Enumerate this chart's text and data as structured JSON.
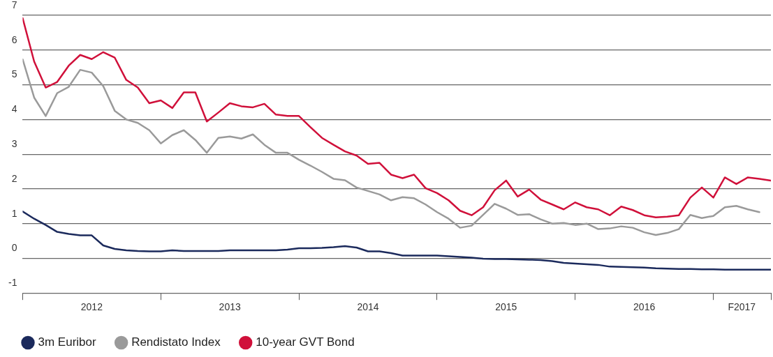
{
  "chart_data": {
    "type": "line",
    "x": [
      "2012-01",
      "2012-02",
      "2012-03",
      "2012-04",
      "2012-05",
      "2012-06",
      "2012-07",
      "2012-08",
      "2012-09",
      "2012-10",
      "2012-11",
      "2012-12",
      "2013-01",
      "2013-02",
      "2013-03",
      "2013-04",
      "2013-05",
      "2013-06",
      "2013-07",
      "2013-08",
      "2013-09",
      "2013-10",
      "2013-11",
      "2013-12",
      "2014-01",
      "2014-02",
      "2014-03",
      "2014-04",
      "2014-05",
      "2014-06",
      "2014-07",
      "2014-08",
      "2014-09",
      "2014-10",
      "2014-11",
      "2014-12",
      "2015-01",
      "2015-02",
      "2015-03",
      "2015-04",
      "2015-05",
      "2015-06",
      "2015-07",
      "2015-08",
      "2015-09",
      "2015-10",
      "2015-11",
      "2015-12",
      "2016-01",
      "2016-02",
      "2016-03",
      "2016-04",
      "2016-05",
      "2016-06",
      "2016-07",
      "2016-08",
      "2016-09",
      "2016-10",
      "2016-11",
      "2016-12",
      "2017-01",
      "2017-02",
      "2017-03",
      "2017-04",
      "2017-05",
      "2017-06"
    ],
    "series": [
      {
        "name": "3m Euribor",
        "color": "#1b2a5c",
        "values": [
          1.35,
          1.14,
          0.96,
          0.76,
          0.7,
          0.66,
          0.66,
          0.37,
          0.27,
          0.23,
          0.21,
          0.2,
          0.2,
          0.23,
          0.21,
          0.21,
          0.21,
          0.21,
          0.23,
          0.23,
          0.23,
          0.23,
          0.23,
          0.25,
          0.29,
          0.29,
          0.3,
          0.32,
          0.35,
          0.31,
          0.2,
          0.2,
          0.15,
          0.08,
          0.08,
          0.08,
          0.08,
          0.06,
          0.04,
          0.02,
          -0.01,
          -0.02,
          -0.02,
          -0.03,
          -0.04,
          -0.05,
          -0.08,
          -0.13,
          -0.15,
          -0.17,
          -0.19,
          -0.24,
          -0.25,
          -0.26,
          -0.27,
          -0.29,
          -0.3,
          -0.31,
          -0.31,
          -0.32,
          -0.32,
          -0.33,
          -0.33,
          -0.33,
          -0.33,
          -0.33
        ]
      },
      {
        "name": "Rendistato Index",
        "color": "#9a9a9a",
        "values": [
          5.73,
          4.63,
          4.1,
          4.76,
          4.94,
          5.43,
          5.35,
          4.96,
          4.25,
          4.0,
          3.9,
          3.69,
          3.31,
          3.55,
          3.69,
          3.41,
          3.04,
          3.47,
          3.51,
          3.45,
          3.57,
          3.27,
          3.04,
          3.04,
          2.84,
          2.67,
          2.49,
          2.29,
          2.25,
          2.04,
          1.94,
          1.84,
          1.67,
          1.76,
          1.73,
          1.55,
          1.33,
          1.14,
          0.88,
          0.94,
          1.25,
          1.57,
          1.43,
          1.25,
          1.27,
          1.12,
          1.0,
          1.02,
          0.96,
          1.0,
          0.84,
          0.86,
          0.92,
          0.88,
          0.75,
          0.67,
          0.73,
          0.84,
          1.25,
          1.16,
          1.22,
          1.47,
          1.51,
          1.41,
          1.33,
          null
        ]
      },
      {
        "name": "10-year GVT Bond",
        "color": "#d0103a",
        "values": [
          6.92,
          5.67,
          4.92,
          5.08,
          5.55,
          5.86,
          5.74,
          5.94,
          5.78,
          5.14,
          4.92,
          4.47,
          4.55,
          4.33,
          4.78,
          4.78,
          3.94,
          4.2,
          4.47,
          4.38,
          4.35,
          4.45,
          4.14,
          4.1,
          4.1,
          3.78,
          3.47,
          3.27,
          3.08,
          2.96,
          2.72,
          2.75,
          2.41,
          2.31,
          2.41,
          2.02,
          1.88,
          1.67,
          1.37,
          1.24,
          1.47,
          1.96,
          2.24,
          1.78,
          1.98,
          1.69,
          1.55,
          1.41,
          1.61,
          1.47,
          1.41,
          1.24,
          1.49,
          1.39,
          1.24,
          1.18,
          1.2,
          1.24,
          1.75,
          2.04,
          1.75,
          2.33,
          2.14,
          2.33,
          2.29,
          2.24
        ]
      }
    ],
    "xlim": [
      "2012-01",
      "2017-06"
    ],
    "xticks": [
      {
        "value": "2012-01",
        "label": null
      },
      {
        "value": "2012-07",
        "label": "2012"
      },
      {
        "value": "2013-01",
        "label": null
      },
      {
        "value": "2013-07",
        "label": "2013"
      },
      {
        "value": "2014-01",
        "label": null
      },
      {
        "value": "2014-07",
        "label": "2014"
      },
      {
        "value": "2015-01",
        "label": null
      },
      {
        "value": "2015-07",
        "label": "2015"
      },
      {
        "value": "2016-01",
        "label": null
      },
      {
        "value": "2016-07",
        "label": "2016"
      },
      {
        "value": "2017-01",
        "label": null
      },
      {
        "value": "2017-03-15",
        "label": "F2017"
      },
      {
        "value": "2017-06",
        "label": null
      }
    ],
    "ylim": [
      -1,
      7
    ],
    "yticks": [
      -1,
      0,
      1,
      2,
      3,
      4,
      5,
      6,
      7
    ],
    "grid": "y",
    "legend": "bottom left",
    "marker": "none",
    "line_style": "solid"
  }
}
